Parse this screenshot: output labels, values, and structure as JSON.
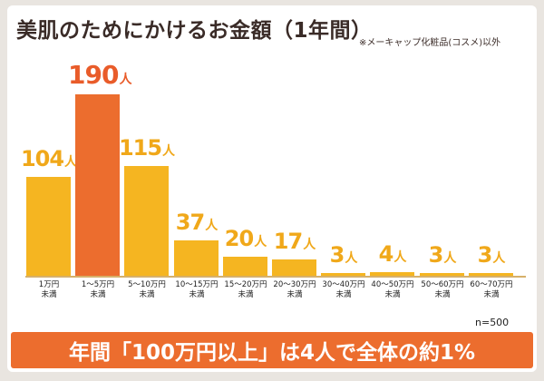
{
  "title": "美肌のためにかけるお金額（1年間）",
  "note": "※メーキャップ化粧品(コスメ)以外",
  "sample_note": "n=500",
  "banner": "年間「100万円以上」は4人で全体の約1%",
  "colors": {
    "highlight": "#ec6d2e",
    "bar": "#f5b521",
    "label_highlight": "#e95c2a",
    "label": "#f0a81a",
    "banner": "#ec6d2e"
  },
  "chart_data": {
    "type": "bar",
    "title": "美肌のためにかけるお金額（1年間）",
    "unit": "人",
    "categories": [
      "1万円\n未満",
      "1〜5万円\n未満",
      "5〜10万円\n未満",
      "10〜15万円\n未満",
      "15〜20万円\n未満",
      "20〜30万円\n未満",
      "30〜40万円\n未満",
      "40〜50万円\n未満",
      "50〜60万円\n未満",
      "60〜70万円\n未満"
    ],
    "values": [
      104,
      190,
      115,
      37,
      20,
      17,
      3,
      4,
      3,
      3
    ],
    "value_labels": [
      "104",
      "190",
      "115",
      "37",
      "20",
      "17",
      "3",
      "4",
      "3",
      "3"
    ],
    "highlight_index": 1,
    "ylim": [
      0,
      190
    ]
  }
}
